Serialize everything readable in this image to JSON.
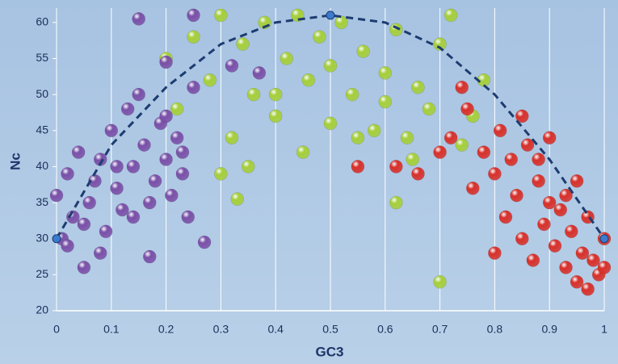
{
  "chart_data": {
    "type": "scatter",
    "xlabel": "GC3",
    "ylabel": "Nc",
    "xlim": [
      0,
      1
    ],
    "ylim": [
      20,
      62
    ],
    "xticks": [
      0,
      0.1,
      0.2,
      0.3,
      0.4,
      0.5,
      0.6,
      0.7,
      0.8,
      0.9,
      1
    ],
    "yticks": [
      20,
      25,
      30,
      35,
      40,
      45,
      50,
      55,
      60
    ],
    "grid": true,
    "series": [
      {
        "color": "#a6cf3a",
        "x": [
          0.2,
          0.22,
          0.25,
          0.28,
          0.3,
          0.32,
          0.34,
          0.36,
          0.38,
          0.4,
          0.42,
          0.44,
          0.46,
          0.48,
          0.5,
          0.52,
          0.54,
          0.56,
          0.58,
          0.6,
          0.62,
          0.64,
          0.66,
          0.68,
          0.7,
          0.72,
          0.74,
          0.76,
          0.78,
          0.3,
          0.35,
          0.45,
          0.55,
          0.65,
          0.33,
          0.62,
          0.7,
          0.5,
          0.4,
          0.6
        ],
        "values": [
          55,
          48,
          58,
          52,
          61,
          44,
          57,
          50,
          60,
          47,
          55,
          61,
          52,
          58,
          46,
          60,
          50,
          56,
          45,
          53,
          59,
          44,
          51,
          48,
          57,
          61,
          43,
          47,
          52,
          39,
          40,
          42,
          44,
          41,
          35.5,
          35,
          24,
          54,
          50,
          49
        ]
      },
      {
        "color": "#d8302a",
        "x": [
          0.55,
          0.62,
          0.66,
          0.72,
          0.74,
          0.76,
          0.78,
          0.8,
          0.81,
          0.82,
          0.83,
          0.84,
          0.85,
          0.86,
          0.87,
          0.88,
          0.89,
          0.9,
          0.91,
          0.92,
          0.93,
          0.94,
          0.95,
          0.96,
          0.97,
          0.98,
          0.99,
          1,
          0.8,
          0.85,
          0.9,
          0.95,
          1,
          0.88,
          0.93,
          0.97,
          0.75,
          0.7
        ],
        "values": [
          40,
          40,
          39,
          44,
          51,
          37,
          42,
          28,
          45,
          33,
          41,
          36,
          30,
          43,
          27,
          38,
          32,
          35,
          29,
          34,
          26,
          31,
          24,
          28,
          23,
          27,
          25,
          30,
          39,
          47,
          44,
          38,
          26,
          41,
          36,
          33,
          48,
          42
        ]
      },
      {
        "color": "#7a50a8",
        "x": [
          0,
          0.01,
          0.02,
          0.03,
          0.04,
          0.05,
          0.06,
          0.07,
          0.08,
          0.09,
          0.1,
          0.11,
          0.12,
          0.13,
          0.14,
          0.15,
          0.16,
          0.17,
          0.18,
          0.19,
          0.2,
          0.21,
          0.22,
          0.23,
          0.24,
          0.25,
          0.02,
          0.05,
          0.08,
          0.11,
          0.14,
          0.17,
          0.2,
          0.23,
          0.15,
          0.27,
          0.32,
          0.37,
          0.25,
          0.2
        ],
        "values": [
          36,
          30,
          39,
          33,
          42,
          26,
          35,
          38,
          41,
          31,
          45,
          37,
          34,
          48,
          40,
          60.5,
          43,
          27.5,
          38,
          46,
          41,
          36,
          44,
          39,
          33,
          61,
          29,
          32,
          28,
          40,
          33,
          35,
          47,
          42,
          50,
          29.5,
          54,
          53,
          51,
          54.5
        ]
      }
    ],
    "curve": {
      "color": "#1d3c70",
      "x": [
        0,
        0.1,
        0.2,
        0.3,
        0.4,
        0.5,
        0.6,
        0.7,
        0.8,
        0.9,
        1
      ],
      "values": [
        30,
        43,
        51,
        57,
        60,
        61,
        60,
        56.5,
        50,
        41,
        30
      ]
    }
  }
}
